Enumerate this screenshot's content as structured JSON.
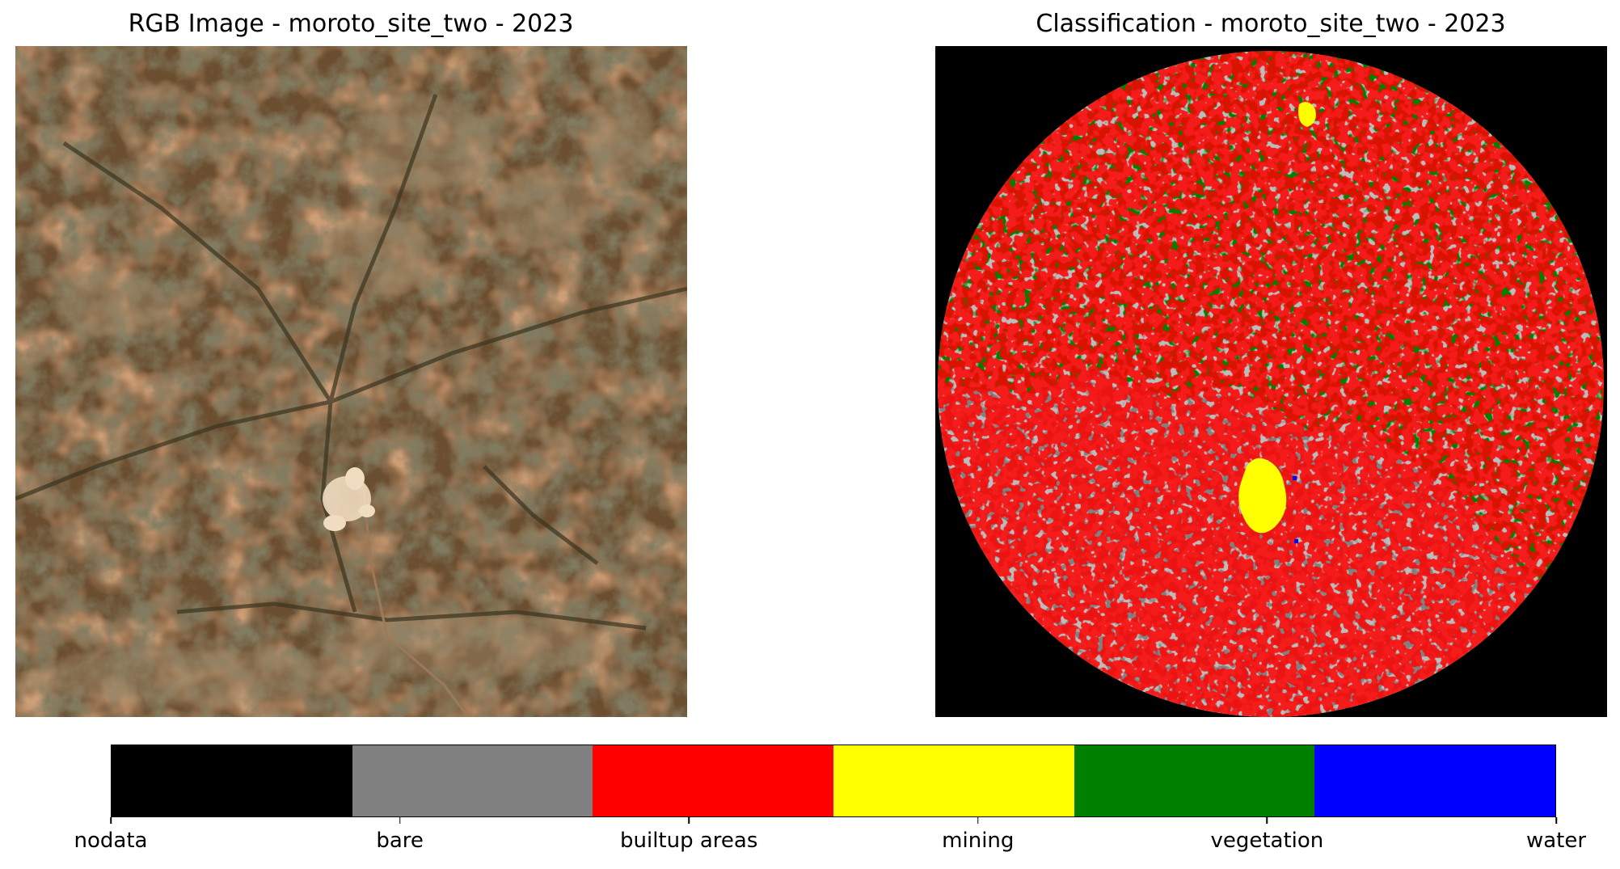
{
  "figure": {
    "left_title": "RGB Image - moroto_site_two - 2023",
    "right_title": "Classification - moroto_site_two - 2023"
  },
  "colorbar": {
    "classes": [
      {
        "label": "nodata",
        "color": "#000000"
      },
      {
        "label": "bare",
        "color": "#808080"
      },
      {
        "label": "builtup areas",
        "color": "#ff0000"
      },
      {
        "label": "mining",
        "color": "#ffff00"
      },
      {
        "label": "vegetation",
        "color": "#008000"
      },
      {
        "label": "water",
        "color": "#0000ff"
      }
    ]
  },
  "rgb_palette": {
    "base": "#6b4e30",
    "dark_vegetation": "#3a3420",
    "reddish_soil": "#8a5530",
    "light_soil": "#a08a6a",
    "mine_site": "#f0dcc0",
    "road": "#9a7a5a"
  }
}
